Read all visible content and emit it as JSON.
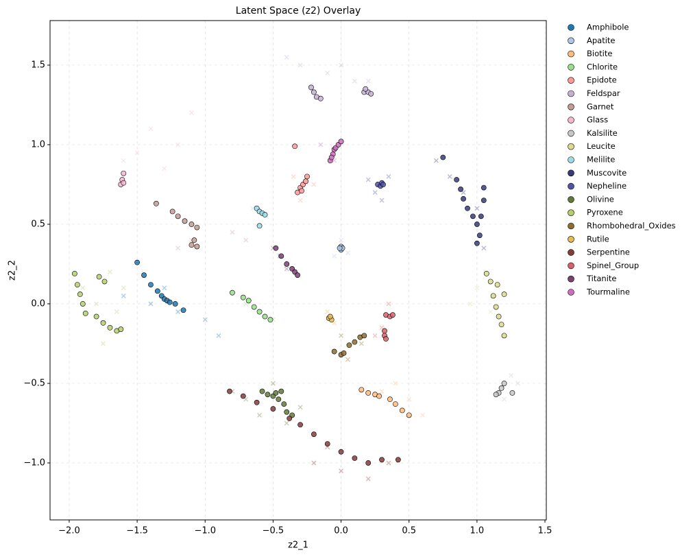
{
  "chart_data": {
    "type": "scatter",
    "title": "Latent Space (z2) Overlay",
    "x_label": "z2_1",
    "y_label": "z2_2",
    "xlim": [
      -2.141,
      1.51
    ],
    "ylim": [
      -1.358,
      1.78
    ],
    "grid": true,
    "legend": "outside right",
    "xticks": [
      {
        "value": -2.0,
        "label": "−2.0"
      },
      {
        "value": -1.5,
        "label": "−1.5"
      },
      {
        "value": -1.0,
        "label": "−1.0"
      },
      {
        "value": -0.5,
        "label": "−0.5"
      },
      {
        "value": 0.0,
        "label": "0.0"
      },
      0.5,
      {
        "value": 1.0,
        "label": "1.0"
      },
      1.5
    ],
    "yticks": [
      {
        "value": -1.0,
        "label": "−1.0"
      },
      {
        "value": -0.5,
        "label": "−0.5"
      },
      {
        "value": 0.0,
        "label": "0.0"
      },
      0.5,
      {
        "value": 1.0,
        "label": "1.0"
      },
      1.5
    ],
    "series": [
      {
        "name": "Amphibole",
        "color": "#1f77b4",
        "x": [
          -1.5,
          -1.45,
          -1.4,
          -1.35,
          -1.32,
          -1.3,
          -1.28,
          -1.26,
          -1.22,
          -1.16
        ],
        "y": [
          0.26,
          0.18,
          0.12,
          0.08,
          0.05,
          0.03,
          0.02,
          0.01,
          0.0,
          -0.04
        ],
        "cloud_x": [
          -1.6,
          -1.4,
          -1.2,
          -1.0,
          -0.9,
          -1.3
        ],
        "cloud_y": [
          0.05,
          0.0,
          -0.05,
          -0.1,
          -0.2,
          0.1
        ]
      },
      {
        "name": "Apatite",
        "color": "#aec7e8",
        "x": [
          0.0,
          0.0,
          0.01,
          -0.01
        ],
        "y": [
          0.36,
          0.34,
          0.35,
          0.35
        ],
        "cloud_x": [
          0.0,
          -0.05,
          0.05
        ],
        "cloud_y": [
          0.4,
          0.3,
          0.32
        ]
      },
      {
        "name": "Biotite",
        "color": "#ffbb78",
        "x": [
          0.15,
          0.2,
          0.25,
          0.28,
          0.36,
          0.4,
          0.45,
          0.5
        ],
        "y": [
          -0.54,
          -0.56,
          -0.57,
          -0.58,
          -0.6,
          -0.63,
          -0.67,
          -0.7
        ],
        "cloud_x": [
          0.3,
          0.5,
          0.6,
          0.4
        ],
        "cloud_y": [
          -0.55,
          -0.6,
          -0.7,
          -0.5
        ]
      },
      {
        "name": "Chlorite",
        "color": "#98df8a",
        "x": [
          -0.8,
          -0.72,
          -0.68,
          -0.64,
          -0.6,
          -0.56,
          -0.52
        ],
        "y": [
          0.07,
          0.04,
          0.02,
          -0.02,
          -0.05,
          -0.08,
          -0.1
        ],
        "cloud_x": [
          -0.6,
          -0.5,
          -0.7
        ],
        "cloud_y": [
          -0.05,
          -0.1,
          0.0
        ]
      },
      {
        "name": "Epidote",
        "color": "#ff9896",
        "x": [
          -0.34,
          -0.32,
          -0.3,
          -0.28,
          -0.26,
          -0.25,
          -0.29
        ],
        "y": [
          0.99,
          0.7,
          0.73,
          0.75,
          0.77,
          0.8,
          0.71
        ],
        "cloud_x": [
          -0.35,
          -0.3,
          -0.2
        ],
        "cloud_y": [
          0.8,
          0.65,
          0.75
        ]
      },
      {
        "name": "Feldspar",
        "color": "#c5b0d5",
        "x": [
          -0.22,
          -0.2,
          -0.18,
          -0.15,
          0.17,
          0.2,
          0.22,
          0.18
        ],
        "y": [
          1.36,
          1.33,
          1.3,
          1.29,
          1.33,
          1.33,
          1.32,
          1.35
        ],
        "cloud_x": [
          -0.3,
          -0.1,
          0.1,
          0.2,
          -0.4,
          0.0
        ],
        "cloud_y": [
          1.5,
          1.45,
          1.4,
          1.4,
          1.55,
          1.5
        ]
      },
      {
        "name": "Garnet",
        "color": "#c49c94",
        "x": [
          -1.36,
          -1.24,
          -1.2,
          -1.15,
          -1.1,
          -1.06,
          -1.08,
          -1.06,
          -1.1
        ],
        "y": [
          0.63,
          0.58,
          0.55,
          0.52,
          0.5,
          0.48,
          0.4,
          0.36,
          0.37
        ],
        "cloud_x": [
          -1.1,
          -0.8,
          -0.7,
          -1.2
        ],
        "cloud_y": [
          0.4,
          0.45,
          0.4,
          0.35
        ]
      },
      {
        "name": "Glass",
        "color": "#f7b6d2",
        "x": [
          -1.6,
          -1.61,
          -1.62,
          -1.6
        ],
        "y": [
          0.82,
          0.78,
          0.75,
          0.76
        ],
        "cloud_x": [
          -1.6,
          -1.4,
          -1.2,
          -1.1,
          -1.5,
          -1.3
        ],
        "cloud_y": [
          0.9,
          1.1,
          1.0,
          1.2,
          0.95,
          0.85
        ]
      },
      {
        "name": "Kalsilite",
        "color": "#c7c7c7",
        "x": [
          1.2,
          1.18,
          1.16,
          1.14,
          1.26
        ],
        "y": [
          -0.5,
          -0.53,
          -0.56,
          -0.57,
          -0.56
        ],
        "cloud_x": [
          1.25,
          1.2,
          1.3
        ],
        "cloud_y": [
          -0.45,
          -0.6,
          -0.5
        ]
      },
      {
        "name": "Leucite",
        "color": "#dbdb8d",
        "x": [
          1.07,
          1.1,
          1.12,
          1.14,
          1.16,
          1.18,
          1.2,
          1.2,
          1.15
        ],
        "y": [
          0.19,
          0.14,
          0.05,
          -0.02,
          -0.08,
          -0.13,
          -0.2,
          0.06,
          0.12
        ],
        "cloud_x": [
          1.0,
          1.1,
          0.95
        ],
        "cloud_y": [
          0.1,
          -0.05,
          0.0
        ]
      },
      {
        "name": "Melilite",
        "color": "#9edae5",
        "x": [
          -0.62,
          -0.6,
          -0.58,
          -0.56,
          -0.6
        ],
        "y": [
          0.6,
          0.58,
          0.57,
          0.56,
          0.49
        ],
        "cloud_x": [
          -0.65,
          -0.55
        ],
        "cloud_y": [
          0.6,
          0.55
        ]
      },
      {
        "name": "Muscovite",
        "color": "#393b79",
        "x": [
          0.75,
          0.85,
          0.88,
          0.9,
          0.93,
          0.97,
          1.0,
          1.03,
          1.05,
          1.02,
          1.0,
          1.05
        ],
        "y": [
          0.92,
          0.78,
          0.72,
          0.66,
          0.6,
          0.55,
          0.5,
          0.55,
          0.65,
          0.43,
          0.38,
          0.73
        ],
        "cloud_x": [
          0.7,
          0.8,
          1.0,
          1.05,
          0.9
        ],
        "cloud_y": [
          0.9,
          0.8,
          0.6,
          0.35,
          0.7
        ]
      },
      {
        "name": "Nepheline",
        "color": "#5254a3",
        "x": [
          0.27,
          0.29,
          0.3,
          0.31
        ],
        "y": [
          0.75,
          0.74,
          0.76,
          0.75
        ],
        "cloud_x": [
          0.25,
          0.3,
          0.35,
          0.2
        ],
        "cloud_y": [
          0.7,
          0.65,
          0.8,
          0.78
        ]
      },
      {
        "name": "Olivine",
        "color": "#637939",
        "x": [
          -0.58,
          -0.54,
          -0.5,
          -0.46,
          -0.42,
          -0.48,
          -0.4,
          -0.36,
          -0.44
        ],
        "y": [
          -0.55,
          -0.57,
          -0.58,
          -0.6,
          -0.63,
          -0.56,
          -0.68,
          -0.7,
          -0.55
        ],
        "cloud_x": [
          -0.7,
          -0.5,
          -0.3,
          -0.6,
          -0.4,
          -0.8
        ],
        "cloud_y": [
          -0.6,
          -0.5,
          -0.65,
          -0.7,
          -0.75,
          -0.55
        ]
      },
      {
        "name": "Pyroxene",
        "color": "#b5cf6b",
        "x": [
          -1.96,
          -1.94,
          -1.92,
          -1.9,
          -1.88,
          -1.78,
          -1.74,
          -1.8,
          -1.75,
          -1.7,
          -1.65,
          -1.62
        ],
        "y": [
          0.19,
          0.12,
          0.06,
          0.0,
          -0.06,
          0.17,
          0.14,
          -0.08,
          -0.12,
          -0.15,
          -0.17,
          -0.16
        ],
        "cloud_x": [
          -1.8,
          -1.7,
          -1.65,
          -1.9,
          -1.75,
          -1.6
        ],
        "cloud_y": [
          0.0,
          0.2,
          -0.05,
          0.1,
          -0.25,
          0.1
        ]
      },
      {
        "name": "Rhombohedral_Oxides",
        "color": "#8c6d31",
        "x": [
          -0.05,
          0.0,
          0.02,
          0.06,
          0.1,
          0.14,
          0.17
        ],
        "y": [
          -0.3,
          -0.32,
          -0.31,
          -0.26,
          -0.24,
          -0.21,
          -0.2
        ],
        "cloud_x": [
          0.0,
          0.05,
          0.15
        ],
        "cloud_y": [
          -0.2,
          -0.35,
          -0.25
        ]
      },
      {
        "name": "Rutile",
        "color": "#e7ba52",
        "x": [
          -0.09,
          -0.07,
          -0.08
        ],
        "y": [
          -0.09,
          -0.1,
          -0.08
        ],
        "cloud_x": [
          -0.1,
          -0.05
        ],
        "cloud_y": [
          -0.05,
          -0.12
        ]
      },
      {
        "name": "Serpentine",
        "color": "#843c39",
        "x": [
          -0.82,
          -0.72,
          -0.62,
          -0.5,
          -0.38,
          -0.3,
          -0.2,
          -0.1,
          0.0,
          0.1,
          0.2,
          0.3,
          0.42
        ],
        "y": [
          -0.55,
          -0.58,
          -0.62,
          -0.66,
          -0.72,
          -0.76,
          -0.82,
          -0.88,
          -0.93,
          -0.97,
          -1.0,
          -0.98,
          -0.98
        ],
        "cloud_x": [
          -0.2,
          0.0,
          0.2,
          0.35,
          -0.1
        ],
        "cloud_y": [
          -1.0,
          -1.05,
          -1.1,
          -1.0,
          -0.9
        ]
      },
      {
        "name": "Spinel_Group",
        "color": "#d6616b",
        "x": [
          0.33,
          0.36,
          0.38,
          0.32,
          0.32,
          0.33
        ],
        "y": [
          -0.07,
          -0.08,
          -0.07,
          -0.17,
          -0.2,
          -0.22
        ],
        "cloud_x": [
          0.35,
          0.3,
          0.25
        ],
        "cloud_y": [
          0.0,
          -0.15,
          -0.2
        ]
      },
      {
        "name": "Titanite",
        "color": "#7b4173",
        "x": [
          -0.48,
          -0.44,
          -0.4,
          -0.36,
          -0.34,
          -0.32
        ],
        "y": [
          0.35,
          0.3,
          0.25,
          0.22,
          0.2,
          0.18
        ],
        "cloud_x": [
          -0.5,
          -0.4,
          -0.45
        ],
        "cloud_y": [
          0.35,
          0.22,
          0.3
        ]
      },
      {
        "name": "Tourmaline",
        "color": "#ce6dbd",
        "x": [
          -0.08,
          -0.06,
          -0.05,
          -0.04,
          -0.02,
          0.0,
          -0.07
        ],
        "y": [
          0.9,
          0.94,
          0.97,
          0.98,
          1.0,
          1.02,
          0.92
        ],
        "cloud_x": [
          -0.15,
          -0.05
        ],
        "cloud_y": [
          1.0,
          0.9
        ]
      }
    ]
  }
}
